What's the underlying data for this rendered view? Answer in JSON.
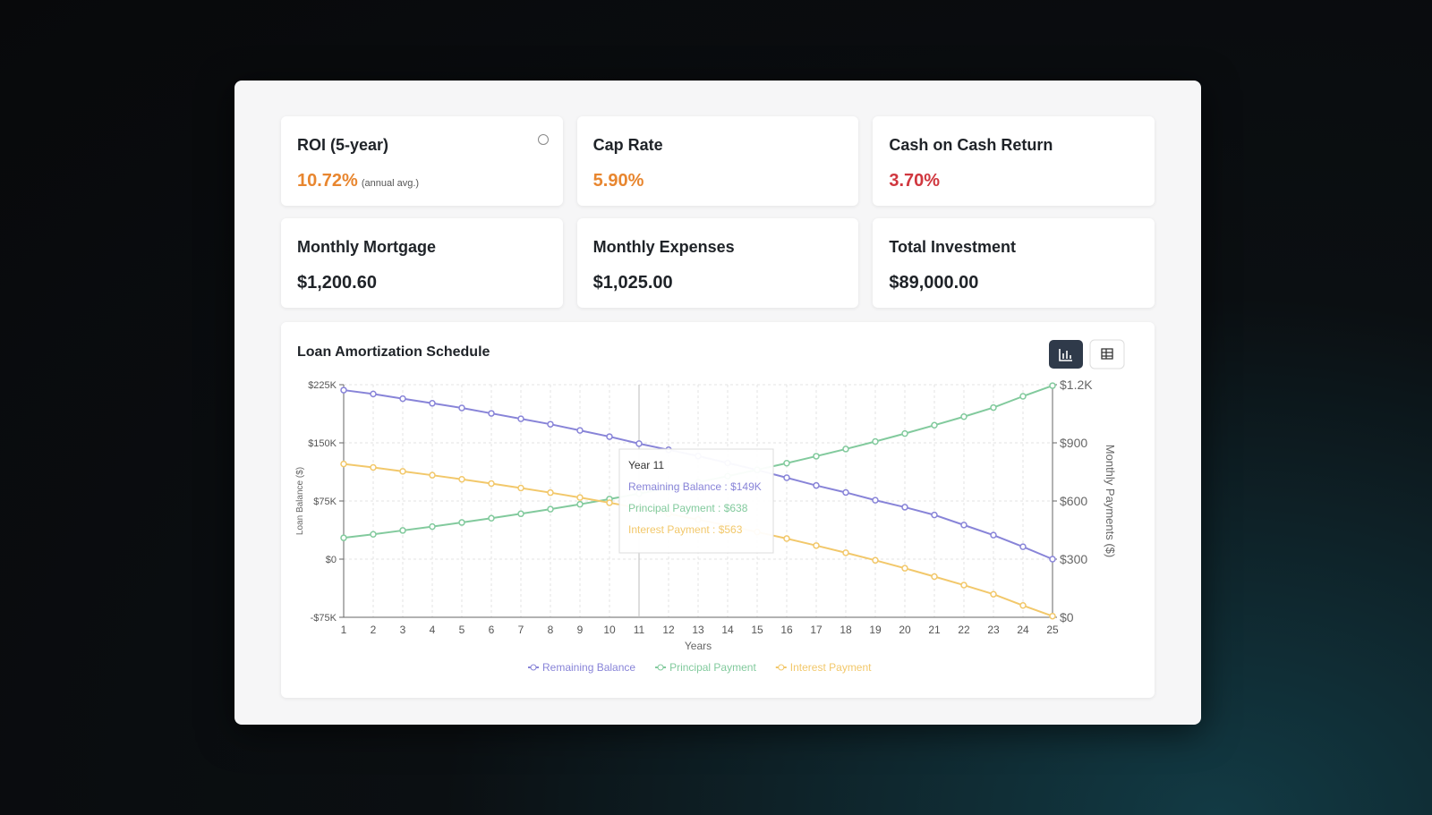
{
  "cards": [
    {
      "title": "ROI (5-year)",
      "value": "10.72%",
      "note": "(annual avg.)",
      "color": "#e8862f"
    },
    {
      "title": "Cap Rate",
      "value": "5.90%",
      "color": "#e8862f"
    },
    {
      "title": "Cash on Cash Return",
      "value": "3.70%",
      "color": "#d0373f"
    },
    {
      "title": "Monthly Mortgage",
      "value": "$1,200.60",
      "color": "#1f2328"
    },
    {
      "title": "Monthly Expenses",
      "value": "$1,025.00",
      "color": "#1f2328"
    },
    {
      "title": "Total Investment",
      "value": "$89,000.00",
      "color": "#1f2328"
    }
  ],
  "chart_data": {
    "type": "line",
    "title": "Loan Amortization Schedule",
    "x_label": "Years",
    "y_label": "Loan Balance ($)",
    "y2_label": "Monthly Payments ($)",
    "categories": [
      1,
      2,
      3,
      4,
      5,
      6,
      7,
      8,
      9,
      10,
      11,
      12,
      13,
      14,
      15,
      16,
      17,
      18,
      19,
      20,
      21,
      22,
      23,
      24,
      25
    ],
    "ylim": [
      -75000,
      225000
    ],
    "yticks": [
      {
        "value": -75000,
        "label": "-$75K"
      },
      {
        "value": 0,
        "label": "$0"
      },
      {
        "value": 75000,
        "label": "$75K"
      },
      {
        "value": 150000,
        "label": "$150K"
      },
      {
        "value": 225000,
        "label": "$225K"
      }
    ],
    "y2lim": [
      0,
      1200
    ],
    "y2ticks": [
      {
        "value": 0,
        "label": "$0"
      },
      {
        "value": 300,
        "label": "$300"
      },
      {
        "value": 600,
        "label": "$600"
      },
      {
        "value": 900,
        "label": "$900"
      },
      {
        "value": 1200,
        "label": "$1.2K"
      }
    ],
    "grid": true,
    "series": [
      {
        "name": "Remaining Balance",
        "color": "#8884d8",
        "values": [
          218000,
          213000,
          207000,
          201000,
          195000,
          188000,
          181000,
          174000,
          166000,
          158000,
          149000,
          141000,
          133000,
          124000,
          115000,
          105000,
          95000,
          86000,
          76000,
          67000,
          57000,
          44000,
          31000,
          16000,
          0
        ]
      },
      {
        "name": "Principal Payment",
        "color": "#82ca9d",
        "axis": "y2",
        "values": [
          410,
          428,
          448,
          468,
          489,
          511,
          534,
          558,
          583,
          610,
          638,
          667,
          697,
          728,
          761,
          795,
          831,
          868,
          907,
          948,
          991,
          1035,
          1082,
          1140,
          1195
        ]
      },
      {
        "name": "Interest Payment",
        "color": "#f2c86b",
        "axis": "y2",
        "values": [
          791,
          773,
          753,
          733,
          712,
          690,
          667,
          643,
          618,
          591,
          563,
          534,
          504,
          473,
          440,
          406,
          370,
          333,
          294,
          253,
          210,
          166,
          119,
          61,
          6
        ]
      }
    ],
    "tooltip": {
      "title": "Year 11",
      "lines": [
        "Remaining Balance : $149K",
        "Principal Payment : $638",
        "Interest Payment : $563"
      ]
    }
  }
}
